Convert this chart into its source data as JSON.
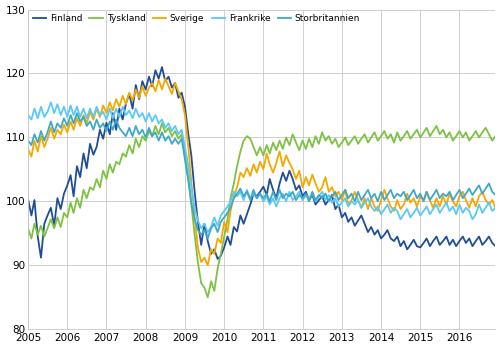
{
  "title": "",
  "ylim": [
    80,
    130
  ],
  "yticks": [
    80,
    90,
    100,
    110,
    120,
    130
  ],
  "legend_labels": [
    "Finland",
    "Tyskland",
    "Sverige",
    "Frankrike",
    "Storbritannien"
  ],
  "line_colors": [
    "#1f4e96",
    "#7dc242",
    "#f5a800",
    "#5bc8f5",
    "#3fa9c5"
  ],
  "line_widths": [
    1.3,
    1.3,
    1.3,
    1.3,
    1.3
  ],
  "background_color": "#ffffff",
  "grid_color": "#c8c8c8",
  "finland": [
    100.3,
    97.8,
    100.2,
    94.5,
    91.2,
    96.5,
    97.8,
    99.0,
    96.2,
    100.5,
    98.8,
    101.2,
    102.5,
    104.1,
    100.8,
    105.5,
    103.8,
    107.5,
    105.2,
    109.0,
    107.3,
    108.5,
    111.2,
    109.8,
    112.3,
    110.5,
    113.8,
    111.2,
    114.5,
    112.8,
    115.3,
    116.8,
    114.5,
    118.2,
    116.0,
    118.8,
    117.5,
    119.5,
    118.0,
    120.5,
    119.2,
    121.0,
    118.8,
    119.5,
    117.8,
    118.5,
    116.2,
    117.0,
    114.8,
    110.5,
    107.2,
    101.5,
    96.8,
    93.2,
    96.5,
    93.8,
    91.8,
    92.5,
    91.0,
    91.5,
    92.8,
    94.5,
    93.2,
    96.0,
    95.3,
    97.8,
    96.5,
    98.0,
    99.5,
    101.2,
    100.8,
    101.5,
    102.3,
    101.0,
    103.5,
    101.8,
    100.5,
    102.8,
    104.5,
    103.2,
    104.8,
    103.5,
    101.8,
    102.5,
    100.8,
    101.5,
    100.2,
    101.0,
    99.5,
    100.2,
    100.8,
    99.5,
    100.2,
    101.0,
    98.8,
    99.5,
    97.5,
    98.2,
    96.8,
    97.5,
    96.2,
    97.0,
    97.8,
    96.5,
    95.2,
    96.0,
    94.8,
    95.5,
    94.2,
    94.8,
    95.5,
    94.2,
    93.8,
    94.5,
    93.0,
    93.8,
    92.5,
    93.2,
    94.0,
    93.0,
    92.8,
    93.5,
    94.2,
    93.0,
    93.8,
    94.5,
    93.2,
    93.8,
    94.5,
    93.2,
    94.0,
    93.0,
    93.8,
    94.5,
    93.5,
    94.2,
    93.0,
    93.8,
    94.5,
    93.2,
    93.8,
    94.5,
    93.5,
    93.0
  ],
  "tyskland": [
    95.8,
    94.2,
    96.5,
    94.8,
    96.2,
    94.5,
    95.8,
    97.2,
    95.8,
    97.5,
    96.0,
    98.2,
    97.5,
    99.8,
    98.2,
    100.5,
    99.0,
    101.8,
    100.5,
    102.2,
    101.8,
    103.5,
    102.2,
    104.8,
    103.5,
    105.8,
    104.5,
    106.2,
    105.8,
    107.5,
    107.0,
    108.8,
    107.5,
    109.8,
    108.5,
    110.2,
    109.5,
    111.0,
    110.2,
    111.8,
    110.5,
    112.2,
    110.8,
    111.5,
    110.2,
    111.0,
    109.8,
    110.5,
    107.2,
    103.8,
    99.5,
    94.8,
    90.5,
    87.2,
    86.5,
    85.0,
    87.5,
    86.0,
    89.5,
    91.8,
    94.5,
    97.2,
    100.5,
    102.8,
    105.5,
    107.8,
    109.5,
    110.2,
    109.8,
    108.5,
    107.2,
    108.5,
    107.2,
    108.8,
    107.5,
    109.2,
    108.0,
    109.5,
    108.2,
    110.0,
    108.8,
    110.5,
    109.2,
    108.0,
    109.5,
    108.2,
    109.8,
    108.5,
    110.2,
    109.0,
    110.8,
    109.5,
    110.2,
    109.0,
    109.8,
    108.5,
    109.2,
    110.0,
    108.8,
    109.5,
    110.2,
    109.0,
    109.8,
    110.5,
    109.2,
    110.0,
    110.8,
    109.5,
    110.2,
    111.0,
    109.8,
    110.5,
    109.2,
    110.8,
    109.5,
    110.2,
    111.0,
    109.8,
    110.5,
    111.2,
    110.0,
    110.8,
    111.5,
    110.2,
    111.0,
    111.8,
    110.5,
    111.2,
    110.0,
    110.8,
    109.5,
    110.2,
    111.0,
    110.0,
    110.8,
    109.5,
    110.2,
    111.0,
    110.0,
    110.8,
    111.5,
    110.5,
    109.5,
    110.2
  ],
  "sverige": [
    108.2,
    107.0,
    109.5,
    107.8,
    110.2,
    108.5,
    109.8,
    111.5,
    109.8,
    111.2,
    110.5,
    112.0,
    110.8,
    112.5,
    111.2,
    113.0,
    111.8,
    113.5,
    112.2,
    114.0,
    112.8,
    114.5,
    113.2,
    115.0,
    113.8,
    115.5,
    114.2,
    116.0,
    114.8,
    116.5,
    115.2,
    117.0,
    115.8,
    117.5,
    116.2,
    118.0,
    116.5,
    117.8,
    118.5,
    117.2,
    119.0,
    117.5,
    119.2,
    118.0,
    116.8,
    118.5,
    117.2,
    116.0,
    113.5,
    108.5,
    103.0,
    97.5,
    92.8,
    90.5,
    91.2,
    90.0,
    92.5,
    91.8,
    94.2,
    93.5,
    96.8,
    95.2,
    98.5,
    100.8,
    102.2,
    104.5,
    103.8,
    105.2,
    104.0,
    105.8,
    104.5,
    106.2,
    105.0,
    107.5,
    105.8,
    104.5,
    106.0,
    107.8,
    105.5,
    107.2,
    106.0,
    105.0,
    103.5,
    104.8,
    102.2,
    103.8,
    102.5,
    104.2,
    102.8,
    101.5,
    102.2,
    103.8,
    101.5,
    102.2,
    100.8,
    101.5,
    100.2,
    101.8,
    99.5,
    100.2,
    101.5,
    100.2,
    99.0,
    100.5,
    98.8,
    100.5,
    99.2,
    98.5,
    100.2,
    101.8,
    100.5,
    99.2,
    98.5,
    100.2,
    98.8,
    99.5,
    101.2,
    99.8,
    100.5,
    99.2,
    100.8,
    100.2,
    101.5,
    100.2,
    99.0,
    100.5,
    99.2,
    100.8,
    99.5,
    101.2,
    100.0,
    99.2,
    100.8,
    101.5,
    100.2,
    99.0,
    100.5,
    99.2,
    100.8,
    101.5,
    100.2,
    99.5,
    100.2,
    99.0
  ],
  "frankrike": [
    113.5,
    112.8,
    114.5,
    113.0,
    114.8,
    113.2,
    114.0,
    115.5,
    113.8,
    115.2,
    113.5,
    114.8,
    113.2,
    115.0,
    113.5,
    114.8,
    113.2,
    114.5,
    113.0,
    114.5,
    113.2,
    114.8,
    113.5,
    114.0,
    112.8,
    114.5,
    113.0,
    114.5,
    113.2,
    114.8,
    113.5,
    114.2,
    113.0,
    114.5,
    113.2,
    113.8,
    112.5,
    113.8,
    112.5,
    113.5,
    112.2,
    112.8,
    111.5,
    112.2,
    111.0,
    111.8,
    110.5,
    111.2,
    108.5,
    105.5,
    102.2,
    99.0,
    97.0,
    95.8,
    96.5,
    95.2,
    96.0,
    97.5,
    96.2,
    97.8,
    98.5,
    99.2,
    100.0,
    101.5,
    100.8,
    101.5,
    100.2,
    101.8,
    100.5,
    101.2,
    100.5,
    101.2,
    100.0,
    100.8,
    99.5,
    100.5,
    99.2,
    100.5,
    101.2,
    100.0,
    101.5,
    100.2,
    100.8,
    101.5,
    100.2,
    101.0,
    100.5,
    101.2,
    100.0,
    100.8,
    101.5,
    100.2,
    101.0,
    99.8,
    100.5,
    99.2,
    99.8,
    100.5,
    99.2,
    100.0,
    99.5,
    100.2,
    99.0,
    99.8,
    100.5,
    99.2,
    98.5,
    99.2,
    98.0,
    98.8,
    99.5,
    98.2,
    99.0,
    98.5,
    97.2,
    98.0,
    98.8,
    97.5,
    98.2,
    99.0,
    97.8,
    98.5,
    99.2,
    98.0,
    98.8,
    99.5,
    98.2,
    99.0,
    99.8,
    98.5,
    99.2,
    98.0,
    99.5,
    98.2,
    99.0,
    98.5,
    97.2,
    98.0,
    99.5,
    98.2,
    99.0,
    99.8,
    98.5,
    99.0
  ],
  "storbritannien": [
    109.5,
    108.8,
    110.5,
    109.2,
    111.0,
    109.5,
    110.8,
    112.5,
    110.8,
    112.2,
    111.5,
    113.0,
    111.8,
    113.5,
    112.2,
    113.8,
    112.5,
    113.2,
    111.8,
    112.5,
    111.2,
    112.8,
    111.5,
    112.2,
    111.0,
    112.5,
    111.2,
    112.8,
    111.5,
    110.8,
    110.2,
    111.5,
    110.2,
    111.8,
    110.5,
    111.2,
    110.0,
    111.5,
    110.2,
    110.8,
    109.5,
    110.8,
    109.5,
    110.2,
    109.0,
    109.8,
    109.0,
    109.8,
    106.5,
    103.2,
    99.8,
    97.2,
    95.5,
    94.8,
    95.5,
    94.2,
    95.8,
    96.5,
    95.2,
    96.8,
    97.5,
    98.2,
    99.0,
    100.5,
    101.2,
    102.0,
    100.8,
    101.5,
    100.2,
    101.8,
    100.5,
    101.2,
    100.5,
    101.2,
    100.0,
    101.5,
    100.2,
    101.8,
    100.5,
    101.2,
    100.8,
    101.5,
    100.2,
    101.0,
    100.5,
    101.2,
    100.0,
    101.5,
    100.2,
    101.0,
    100.5,
    101.2,
    100.0,
    100.8,
    101.5,
    100.2,
    101.0,
    101.8,
    100.5,
    101.2,
    100.0,
    101.5,
    100.2,
    101.0,
    101.8,
    100.5,
    101.2,
    100.0,
    101.5,
    100.2,
    101.0,
    101.8,
    100.5,
    101.2,
    100.8,
    101.5,
    100.2,
    101.0,
    101.8,
    100.5,
    101.2,
    100.0,
    101.5,
    100.2,
    101.0,
    101.8,
    100.5,
    101.2,
    100.8,
    101.5,
    100.2,
    101.0,
    101.8,
    100.5,
    101.2,
    102.0,
    101.0,
    101.8,
    102.5,
    101.2,
    102.0,
    102.8,
    101.5,
    101.0
  ]
}
